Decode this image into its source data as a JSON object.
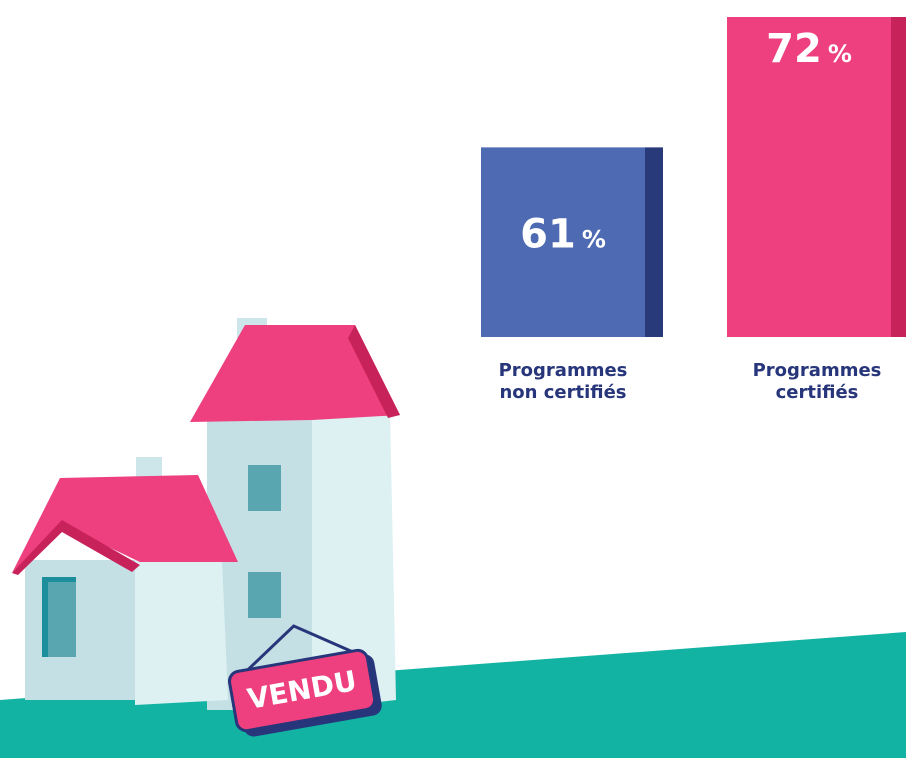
{
  "chart_data": {
    "type": "bar",
    "categories": [
      "Programmes non certifiés",
      "Programmes certifiés"
    ],
    "values": [
      61,
      72
    ],
    "unit": "%",
    "colors": [
      "#4d6ab3",
      "#ee3f7e"
    ],
    "side_colors": [
      "#283a7a",
      "#c8225a"
    ],
    "ylim": [
      45,
      72
    ]
  },
  "sign": {
    "text": "VENDU"
  }
}
